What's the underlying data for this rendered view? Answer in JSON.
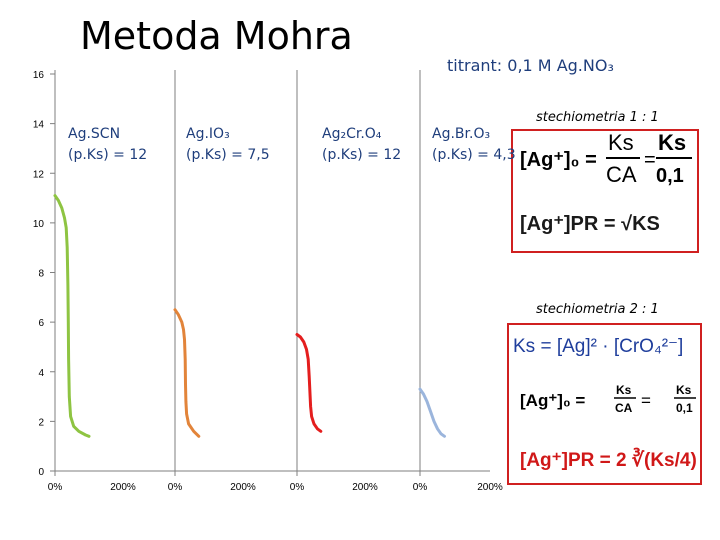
{
  "header": {
    "title": "Metoda Mohra",
    "titrant": "titrant: 0,1 M Ag.NO₃"
  },
  "colors": {
    "grid": "#7f7f7f",
    "SCN": "#8ec442",
    "IO3": "#e2843a",
    "CrO4": "#e41e1e",
    "BrO3": "#9bb5dc",
    "box_border": "#d02020",
    "label_text": "#1f3e7c"
  },
  "labels": {
    "scn": {
      "name": "Ag.SCN",
      "pks": "(p.Ks) = 12"
    },
    "io3": {
      "name": "Ag.IO₃",
      "pks": "(p.Ks) = 7,5"
    },
    "cro4": {
      "name": "Ag₂Cr.O₄",
      "pks": "(p.Ks) = 12"
    },
    "bro3": {
      "name": "Ag.Br.O₃",
      "pks": "(p.Ks) = 4,3"
    }
  },
  "stechiometry": {
    "s11": "stechiometria 1 : 1",
    "s21": "stechiometria 2 : 1"
  },
  "formulas": {
    "f1_lhs": "[Ag⁺]₀ =",
    "f1_ks": "Ks",
    "f1_ca": "CA",
    "f1_ks2": "Ks",
    "f1_c": "0,1",
    "f2": "[Ag⁺]PR = √KS",
    "f3": "Ks = [Ag]² · [CrO₄²⁻]",
    "f4_lhs": "[Ag⁺]₀ =",
    "f4_ks": "Ks",
    "f4_ca": "CA",
    "f4_ks2": "Ks",
    "f4_c": "0,1",
    "f5": "[Ag⁺]PR = 2 ∛(Ks/4)"
  },
  "chart_data": {
    "type": "line",
    "y_ticks": [
      "0",
      "2",
      "4",
      "6",
      "8",
      "10",
      "12",
      "14",
      "16"
    ],
    "ylim": [
      0,
      16
    ],
    "x_tick_labels": [
      "0%",
      "200%"
    ],
    "xlim": [
      0,
      200
    ],
    "series": [
      {
        "name": "Ag.SCN",
        "color": "#8ec442",
        "points": [
          [
            0,
            11.1
          ],
          [
            10,
            10.9
          ],
          [
            20,
            10.6
          ],
          [
            28,
            10.2
          ],
          [
            33,
            9.8
          ],
          [
            36,
            9.0
          ],
          [
            38,
            7.5
          ],
          [
            39,
            6.0
          ],
          [
            40,
            4.5
          ],
          [
            42,
            3.0
          ],
          [
            46,
            2.2
          ],
          [
            55,
            1.8
          ],
          [
            70,
            1.6
          ],
          [
            90,
            1.45
          ],
          [
            100,
            1.4
          ]
        ]
      },
      {
        "name": "Ag.IO₃",
        "color": "#e2843a",
        "points": [
          [
            0,
            6.5
          ],
          [
            10,
            6.3
          ],
          [
            20,
            6.0
          ],
          [
            25,
            5.7
          ],
          [
            28,
            5.3
          ],
          [
            30,
            4.5
          ],
          [
            31,
            3.5
          ],
          [
            32,
            2.8
          ],
          [
            34,
            2.3
          ],
          [
            40,
            1.9
          ],
          [
            55,
            1.6
          ],
          [
            70,
            1.4
          ]
        ]
      },
      {
        "name": "Ag₂Cr.O₄",
        "color": "#e41e1e",
        "points": [
          [
            0,
            5.5
          ],
          [
            10,
            5.4
          ],
          [
            20,
            5.2
          ],
          [
            28,
            4.9
          ],
          [
            33,
            4.5
          ],
          [
            36,
            3.8
          ],
          [
            38,
            3.2
          ],
          [
            40,
            2.6
          ],
          [
            43,
            2.2
          ],
          [
            50,
            1.9
          ],
          [
            60,
            1.7
          ],
          [
            70,
            1.6
          ]
        ]
      },
      {
        "name": "Ag.Br.O₃",
        "color": "#9bb5dc",
        "points": [
          [
            0,
            3.3
          ],
          [
            10,
            3.1
          ],
          [
            20,
            2.8
          ],
          [
            30,
            2.4
          ],
          [
            40,
            2.0
          ],
          [
            50,
            1.7
          ],
          [
            60,
            1.5
          ],
          [
            70,
            1.4
          ]
        ]
      }
    ]
  }
}
